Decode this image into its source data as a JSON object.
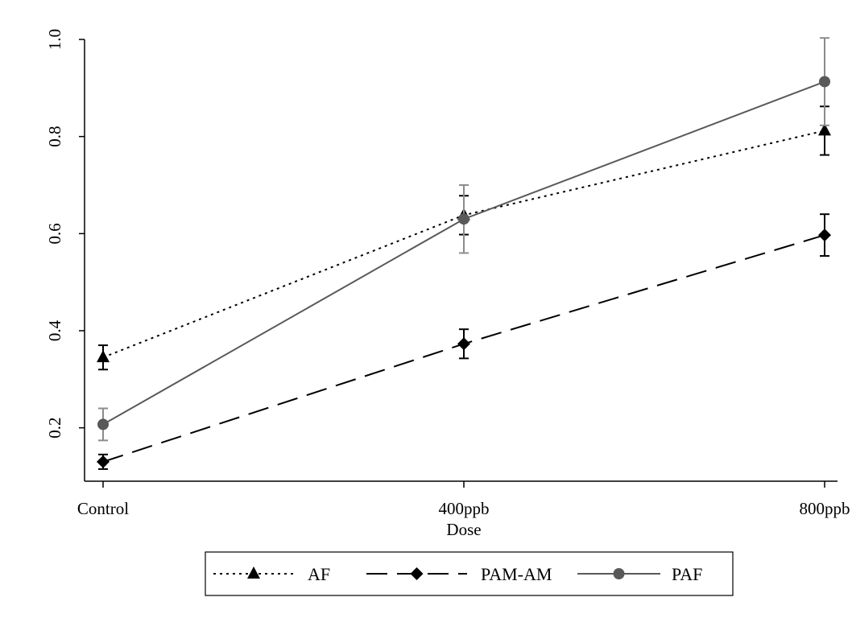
{
  "chart_data": {
    "type": "line",
    "title": "",
    "xlabel": "Dose",
    "ylabel": "",
    "categories": [
      "Control",
      "400ppb",
      "800ppb"
    ],
    "ylim": [
      0.1,
      1.0
    ],
    "yticks": [
      "0.2",
      "0.4",
      "0.6",
      "0.8",
      "1.0"
    ],
    "grid": false,
    "legend_position": "bottom",
    "series": [
      {
        "name": "AF",
        "values": [
          0.345,
          0.638,
          0.812
        ],
        "error": [
          0.025,
          0.04,
          0.05
        ],
        "marker": "triangle",
        "line_style": "dotted",
        "color": "#000000"
      },
      {
        "name": "PAM-AM",
        "values": [
          0.13,
          0.373,
          0.597
        ],
        "error": [
          0.015,
          0.03,
          0.043
        ],
        "marker": "diamond",
        "line_style": "dashed",
        "color": "#000000"
      },
      {
        "name": "PAF",
        "values": [
          0.207,
          0.63,
          0.913
        ],
        "error": [
          0.033,
          0.07,
          0.09
        ],
        "marker": "circle",
        "line_style": "solid",
        "color": "#595959"
      }
    ]
  }
}
